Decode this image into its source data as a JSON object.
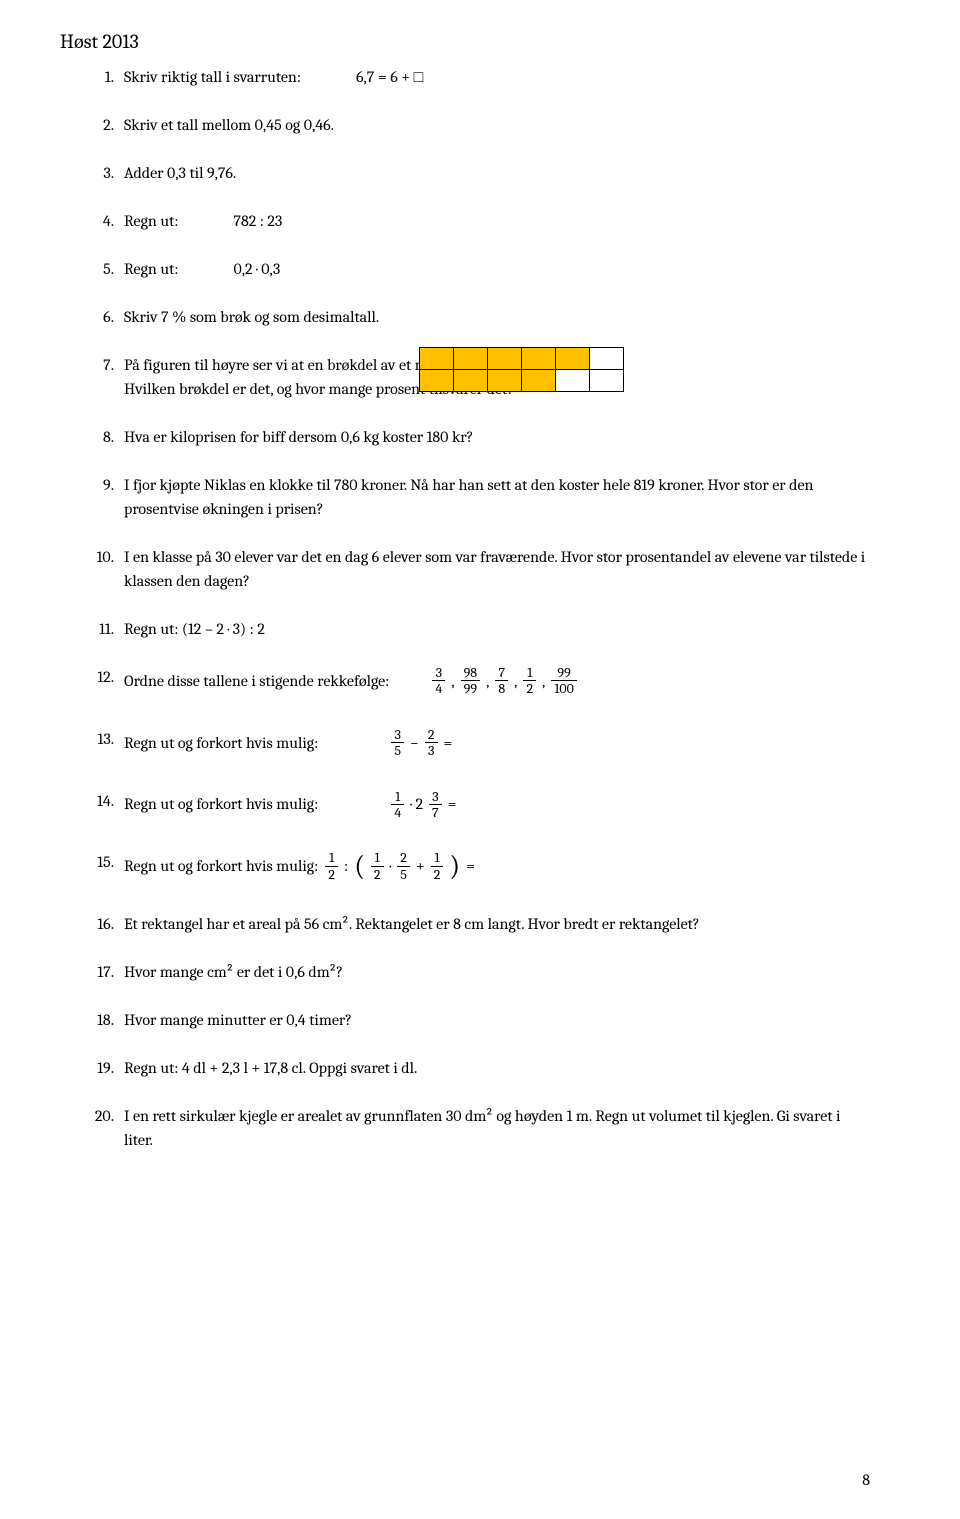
{
  "title": "Høst 2013",
  "page_number": "8",
  "colors": {
    "text": "#000000",
    "background": "#ffffff",
    "shade": "#ffc000",
    "border": "#000000"
  },
  "rect_figure": {
    "rows": 2,
    "cols": 6,
    "shaded_cells": [
      [
        0,
        0
      ],
      [
        0,
        1
      ],
      [
        0,
        2
      ],
      [
        0,
        3
      ],
      [
        0,
        4
      ],
      [
        1,
        0
      ],
      [
        1,
        1
      ],
      [
        1,
        2
      ],
      [
        1,
        3
      ]
    ]
  },
  "questions": {
    "q1": {
      "num": "1.",
      "text_a": "Skriv riktig tall i svarruten:",
      "text_b": "6,7 = 6 + □"
    },
    "q2": {
      "num": "2.",
      "text": "Skriv et tall mellom 0,45 og 0,46."
    },
    "q3": {
      "num": "3.",
      "text": "Adder 0,3 til 9,76."
    },
    "q4": {
      "num": "4.",
      "label": "Regn ut:",
      "expr": "782 : 23"
    },
    "q5": {
      "num": "5.",
      "label": "Regn ut:",
      "expr": "0,2 · 0,3"
    },
    "q6": {
      "num": "6.",
      "text": "Skriv 7 % som brøk og som desimaltall."
    },
    "q7": {
      "num": "7.",
      "text": "På figuren til høyre ser vi at en brøkdel av et rektangel er fargelagt. Hvilken brøkdel er det, og hvor mange prosent tilsvarer det?"
    },
    "q8": {
      "num": "8.",
      "text": "Hva er kiloprisen for biff dersom 0,6 kg koster 180 kr?"
    },
    "q9": {
      "num": "9.",
      "text": "I fjor kjøpte Niklas en klokke til 780 kroner. Nå har han sett at den koster hele 819 kroner. Hvor stor er den prosentvise økningen i prisen?"
    },
    "q10": {
      "num": "10.",
      "text": "I en klasse på 30 elever var det en dag 6 elever som var fraværende. Hvor stor prosentandel av elevene var tilstede i klassen den dagen?"
    },
    "q11": {
      "num": "11.",
      "text": "Regn ut: (12 – 2 · 3) : 2"
    },
    "q12": {
      "num": "12.",
      "label": "Ordne disse tallene i stigende rekkefølge:",
      "fracs": [
        {
          "n": "3",
          "d": "4"
        },
        {
          "n": "98",
          "d": "99"
        },
        {
          "n": "7",
          "d": "8"
        },
        {
          "n": "1",
          "d": "2"
        },
        {
          "n": "99",
          "d": "100"
        }
      ]
    },
    "q13": {
      "num": "13.",
      "label": "Regn ut og forkort hvis mulig:",
      "f1": {
        "n": "3",
        "d": "5"
      },
      "op": "−",
      "f2": {
        "n": "2",
        "d": "3"
      },
      "eq": "="
    },
    "q14": {
      "num": "14.",
      "label": "Regn ut og forkort hvis mulig:",
      "f1": {
        "n": "1",
        "d": "4"
      },
      "op": "· 2",
      "f2": {
        "n": "3",
        "d": "7"
      },
      "eq": "="
    },
    "q15": {
      "num": "15.",
      "label": "Regn ut og forkort hvis mulig:",
      "f0": {
        "n": "1",
        "d": "2"
      },
      "colon": ":",
      "f1": {
        "n": "1",
        "d": "2"
      },
      "op1": "·",
      "f2": {
        "n": "2",
        "d": "5"
      },
      "op2": "+",
      "f3": {
        "n": "1",
        "d": "2"
      },
      "eq": "="
    },
    "q16": {
      "num": "16.",
      "text": "Et rektangel har et areal på 56 cm². Rektangelet er 8 cm langt. Hvor bredt er rektangelet?"
    },
    "q17": {
      "num": "17.",
      "text": "Hvor mange cm² er det i 0,6 dm²?"
    },
    "q18": {
      "num": "18.",
      "text": "Hvor mange minutter er 0,4 timer?"
    },
    "q19": {
      "num": "19.",
      "text": "Regn ut: 4 dl + 2,3 l + 17,8 cl. Oppgi svaret i dl."
    },
    "q20": {
      "num": "20.",
      "text": "I en rett sirkulær kjegle er arealet av grunnflaten 30 dm² og høyden 1 m. Regn ut volumet til kjeglen. Gi svaret i liter."
    }
  }
}
